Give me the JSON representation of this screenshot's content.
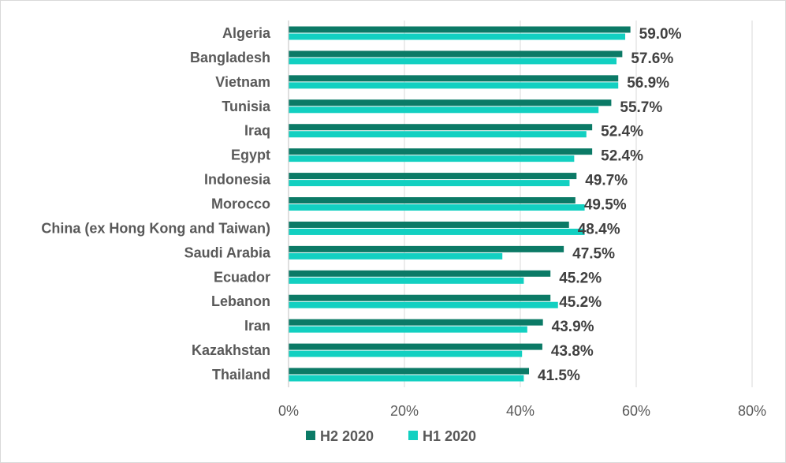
{
  "chart_data": {
    "type": "bar",
    "orientation": "horizontal",
    "title": "",
    "xlabel": "",
    "ylabel": "",
    "xlim": [
      0,
      80
    ],
    "x_ticks": [
      "0%",
      "20%",
      "40%",
      "60%",
      "80%"
    ],
    "grid": "vertical",
    "legend_position": "bottom",
    "categories": [
      "Algeria",
      "Bangladesh",
      "Vietnam",
      "Tunisia",
      "Iraq",
      "Egypt",
      "Indonesia",
      "Morocco",
      "China (ex Hong Kong and Taiwan)",
      "Saudi Arabia",
      "Ecuador",
      "Lebanon",
      "Iran",
      "Kazakhstan",
      "Thailand"
    ],
    "series": [
      {
        "name": "H2 2020",
        "color": "#0b7a66",
        "values": [
          59.0,
          57.6,
          56.9,
          55.7,
          52.4,
          52.4,
          49.7,
          49.5,
          48.4,
          47.5,
          45.2,
          45.2,
          43.9,
          43.8,
          41.5
        ],
        "labels": [
          "59.0%",
          "57.6%",
          "56.9%",
          "55.7%",
          "52.4%",
          "52.4%",
          "49.7%",
          "49.5%",
          "48.4%",
          "47.5%",
          "45.2%",
          "45.2%",
          "43.9%",
          "43.8%",
          "41.5%"
        ]
      },
      {
        "name": "H1 2020",
        "color": "#12d0c1",
        "values": [
          58.1,
          56.6,
          56.9,
          53.5,
          51.4,
          49.3,
          48.5,
          51.1,
          51.1,
          36.9,
          40.6,
          46.5,
          41.2,
          40.3,
          40.6
        ]
      }
    ]
  }
}
